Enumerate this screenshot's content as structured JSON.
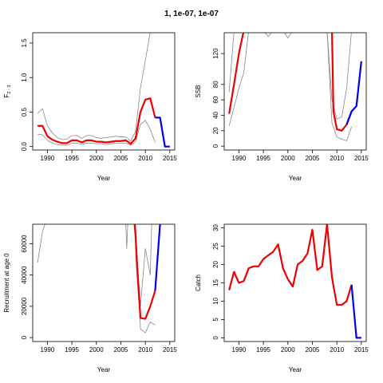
{
  "figure_title": "1, 1e-07, 1e-07",
  "colors": {
    "estimate": "#ee0000",
    "forecast": "#0000ee",
    "interval": "#888888",
    "axis": "#000000"
  },
  "chart_data": [
    {
      "id": "f",
      "type": "line",
      "title": "",
      "xlabel": "Year",
      "ylabel": "F",
      "ylabel_sub": "2 - 3",
      "xlim": [
        1987,
        2016
      ],
      "ylim": [
        -0.05,
        1.65
      ],
      "xticks": [
        1990,
        1995,
        2000,
        2005,
        2010,
        2015
      ],
      "yticks": [
        0.0,
        0.5,
        1.0,
        1.5
      ],
      "ytick_labels": [
        "0.0",
        "0.5",
        "1.0",
        "1.5"
      ],
      "series": [
        {
          "role": "estimate",
          "x": [
            1988,
            1989,
            1990,
            1991,
            1992,
            1993,
            1994,
            1995,
            1996,
            1997,
            1998,
            1999,
            2000,
            2001,
            2002,
            2003,
            2004,
            2005,
            2006,
            2007,
            2008,
            2009,
            2010,
            2011,
            2012
          ],
          "values": [
            0.3,
            0.3,
            0.15,
            0.1,
            0.07,
            0.05,
            0.05,
            0.09,
            0.09,
            0.06,
            0.09,
            0.09,
            0.07,
            0.07,
            0.06,
            0.07,
            0.08,
            0.08,
            0.09,
            0.04,
            0.12,
            0.5,
            0.68,
            0.7,
            0.42
          ]
        },
        {
          "role": "upper",
          "x": [
            1988,
            1989,
            1990,
            1991,
            1992,
            1993,
            1994,
            1995,
            1996,
            1997,
            1998,
            1999,
            2000,
            2001,
            2002,
            2003,
            2004,
            2005,
            2006,
            2007,
            2008,
            2009,
            2010,
            2011
          ],
          "values": [
            0.48,
            0.55,
            0.3,
            0.2,
            0.13,
            0.1,
            0.11,
            0.16,
            0.16,
            0.12,
            0.16,
            0.16,
            0.13,
            0.12,
            0.13,
            0.14,
            0.15,
            0.14,
            0.14,
            0.08,
            0.22,
            0.85,
            1.25,
            1.66
          ]
        },
        {
          "role": "lower",
          "x": [
            1988,
            1989,
            1990,
            1991,
            1992,
            1993,
            1994,
            1995,
            1996,
            1997,
            1998,
            1999,
            2000,
            2001,
            2002,
            2003,
            2004,
            2005,
            2006,
            2007,
            2008,
            2009,
            2010,
            2011,
            2012
          ],
          "values": [
            0.18,
            0.17,
            0.09,
            0.05,
            0.03,
            0.02,
            0.02,
            0.05,
            0.05,
            0.03,
            0.05,
            0.05,
            0.04,
            0.04,
            0.03,
            0.04,
            0.05,
            0.05,
            0.05,
            0.02,
            0.07,
            0.32,
            0.38,
            0.25,
            0.06
          ]
        },
        {
          "role": "forecast",
          "x": [
            2012,
            2013,
            2014,
            2015
          ],
          "values": [
            0.42,
            0.42,
            0.0,
            0.0
          ]
        }
      ]
    },
    {
      "id": "ssb",
      "type": "line",
      "title": "",
      "xlabel": "Year",
      "ylabel": "SSB",
      "ylabel_sub": "",
      "xlim": [
        1987,
        2016
      ],
      "ylim": [
        -5,
        147
      ],
      "xticks": [
        1990,
        1995,
        2000,
        2005,
        2010,
        2015
      ],
      "yticks": [
        0,
        20,
        40,
        60,
        80,
        120
      ],
      "ytick_labels": [
        "0",
        "20",
        "40",
        "60",
        "80",
        "120"
      ],
      "series": [
        {
          "role": "estimate",
          "x": [
            1988,
            1989,
            1990,
            1991,
            2009,
            2009.3,
            2010,
            2011,
            2012,
            2013
          ],
          "values": [
            42,
            80,
            120,
            150,
            150,
            45,
            22,
            20,
            28,
            45
          ]
        },
        {
          "role": "upper",
          "x": [
            1988,
            1989,
            1990,
            1991,
            1992,
            1993,
            1994,
            1995,
            1996,
            1997,
            1998,
            1999,
            2000,
            2001,
            2002,
            2003,
            2004,
            2005,
            2006,
            2007,
            2008,
            2009,
            2010,
            2011,
            2012,
            2013
          ],
          "values": [
            70,
            148,
            150,
            150,
            150,
            150,
            150,
            150,
            142,
            150,
            150,
            150,
            140,
            150,
            150,
            150,
            150,
            150,
            150,
            150,
            150,
            60,
            35,
            38,
            75,
            150
          ]
        },
        {
          "role": "lower",
          "x": [
            1988,
            1989,
            1990,
            1991,
            1992,
            1993,
            1994,
            1995,
            1996,
            1997,
            1998,
            1999,
            2000,
            2001,
            2002,
            2003,
            2004,
            2005,
            2006,
            2007,
            2008,
            2009,
            2010,
            2011,
            2012,
            2013
          ],
          "values": [
            26,
            50,
            75,
            95,
            150,
            150,
            150,
            150,
            150,
            150,
            150,
            150,
            150,
            150,
            150,
            150,
            150,
            150,
            150,
            150,
            150,
            30,
            12,
            9,
            7,
            25
          ]
        },
        {
          "role": "forecast",
          "x": [
            2012,
            2013,
            2014,
            2015
          ],
          "values": [
            28,
            45,
            52,
            110
          ]
        }
      ]
    },
    {
      "id": "rec",
      "type": "line",
      "title": "",
      "xlabel": "Year",
      "ylabel": "Recruitment at age 0",
      "ylabel_sub": "",
      "xlim": [
        1987,
        2016
      ],
      "ylim": [
        -2500,
        72500
      ],
      "xticks": [
        1990,
        1995,
        2000,
        2005,
        2010,
        2015
      ],
      "yticks": [
        0,
        20000,
        40000,
        60000
      ],
      "ytick_labels": [
        "0",
        "20000",
        "40000",
        "60000"
      ],
      "series": [
        {
          "role": "estimate",
          "x": [
            2007.8,
            2008,
            2008.3,
            2009,
            2010,
            2011,
            2012
          ],
          "values": [
            72500,
            65000,
            45000,
            12500,
            12000,
            20000,
            30000
          ]
        },
        {
          "role": "upper",
          "x": [
            1988,
            1989,
            1989.5
          ],
          "values": [
            48000,
            68000,
            72500
          ]
        },
        {
          "role": "upper2",
          "x": [
            2006,
            2006.2,
            2006.4
          ],
          "values": [
            72500,
            57000,
            72500
          ]
        },
        {
          "role": "upper3",
          "x": [
            2007.7,
            2008,
            2009,
            2010,
            2011,
            2011.3
          ],
          "values": [
            72500,
            70000,
            20000,
            57000,
            40000,
            72500
          ]
        },
        {
          "role": "lower",
          "x": [
            2008,
            2009,
            2010,
            2011,
            2012
          ],
          "values": [
            72500,
            5500,
            3000,
            10000,
            8000
          ]
        },
        {
          "role": "forecast",
          "x": [
            2012,
            2013
          ],
          "values": [
            30000,
            72500
          ]
        }
      ]
    },
    {
      "id": "catch",
      "type": "line",
      "title": "",
      "xlabel": "Year",
      "ylabel": "Catch",
      "ylabel_sub": "",
      "xlim": [
        1987,
        2016
      ],
      "ylim": [
        -1,
        31
      ],
      "xticks": [
        1990,
        1995,
        2000,
        2005,
        2010,
        2015
      ],
      "yticks": [
        0,
        5,
        10,
        15,
        20,
        25,
        30
      ],
      "ytick_labels": [
        "0",
        "5",
        "10",
        "15",
        "20",
        "25",
        "30"
      ],
      "series": [
        {
          "role": "estimate",
          "x": [
            1988,
            1989,
            1990,
            1991,
            1992,
            1993,
            1994,
            1995,
            1996,
            1997,
            1998,
            1999,
            2000,
            2001,
            2002,
            2003,
            2004,
            2005,
            2006,
            2007,
            2008,
            2009,
            2010,
            2011,
            2012,
            2013
          ],
          "values": [
            13,
            18,
            15,
            15.5,
            19,
            19.5,
            19.5,
            21.5,
            22.5,
            23.5,
            25.5,
            19,
            16,
            14,
            20,
            21,
            23,
            29.5,
            18.5,
            19.5,
            31,
            16.5,
            9,
            9,
            10,
            14.5
          ]
        },
        {
          "role": "forecast",
          "x": [
            2013,
            2014,
            2015
          ],
          "values": [
            14.5,
            0,
            0
          ]
        }
      ]
    }
  ]
}
